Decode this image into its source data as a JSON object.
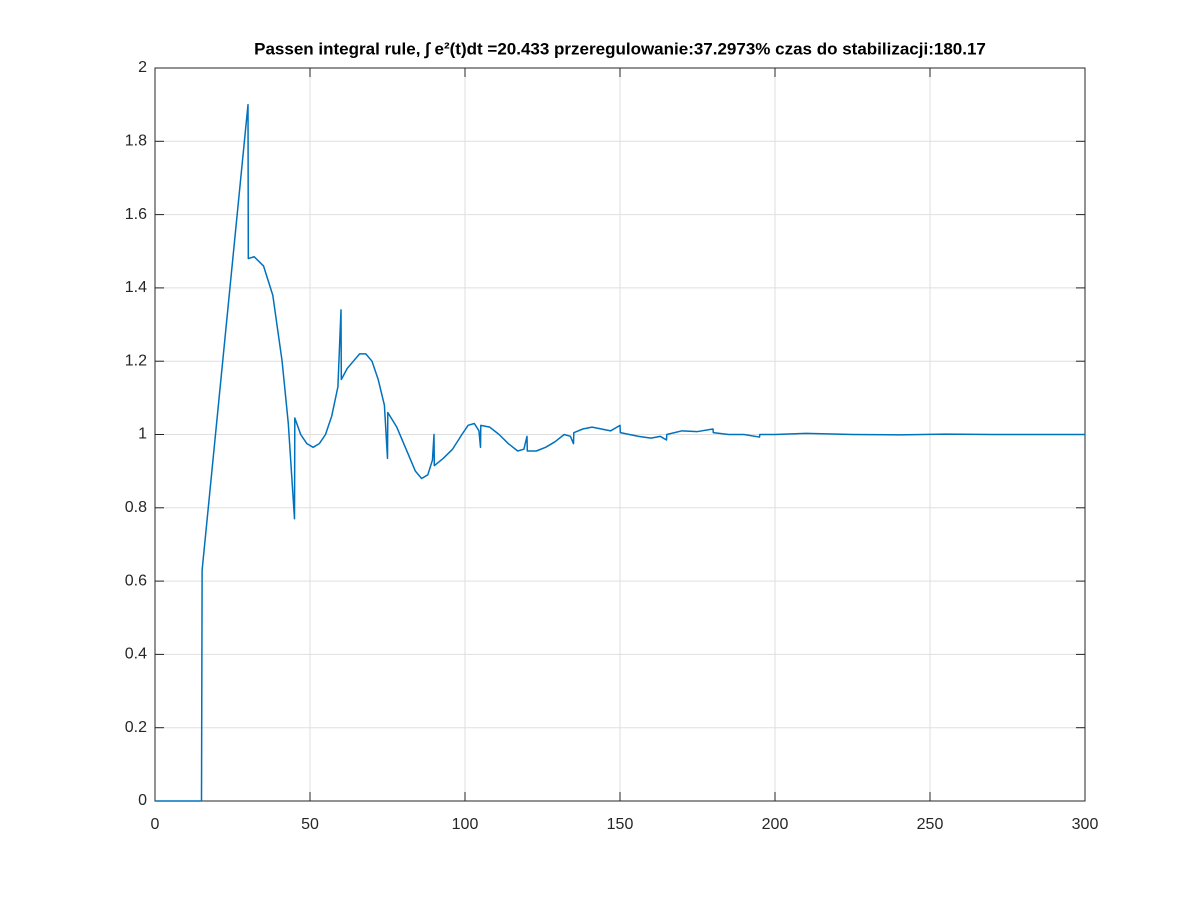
{
  "chart_data": {
    "type": "line",
    "title": "Passen integral rule, ∫ e²(t)dt =20.433 przeregulowanie:37.2973% czas do stabilizacji:180.17",
    "xlim": [
      0,
      300
    ],
    "xticks": [
      0,
      50,
      100,
      150,
      200,
      250,
      300
    ],
    "ylim": [
      0,
      2
    ],
    "yticks": [
      0,
      0.2,
      0.4,
      0.6,
      0.8,
      1,
      1.2,
      1.4,
      1.6,
      1.8,
      2
    ],
    "grid": true,
    "series": [
      {
        "color": "#0072bd",
        "x": [
          0,
          15,
          15.2,
          30,
          30.1,
          32,
          35,
          38,
          41,
          43,
          45,
          45.1,
          47,
          49,
          51,
          53,
          55,
          57,
          59,
          60,
          60.1,
          62,
          64,
          66,
          68,
          70,
          72,
          74,
          75,
          75.1,
          78,
          81,
          84,
          86,
          88,
          89.5,
          90,
          90.1,
          93,
          96,
          99,
          101,
          103,
          104.5,
          105,
          105.1,
          108,
          111,
          114,
          117,
          119,
          120,
          120.1,
          123,
          126,
          129,
          132,
          134,
          135,
          135.1,
          138,
          141,
          144,
          147,
          150,
          150.1,
          153,
          156,
          160,
          163,
          165,
          165.1,
          170,
          175,
          180,
          180.1,
          185,
          190,
          195,
          195.1,
          200,
          210,
          225,
          240,
          255,
          270,
          300
        ],
        "values": [
          0,
          0,
          0.63,
          1.9,
          1.48,
          1.485,
          1.46,
          1.38,
          1.2,
          1.03,
          0.77,
          1.045,
          1.0,
          0.975,
          0.965,
          0.975,
          1.0,
          1.05,
          1.13,
          1.34,
          1.15,
          1.18,
          1.2,
          1.22,
          1.22,
          1.2,
          1.15,
          1.08,
          0.935,
          1.06,
          1.02,
          0.96,
          0.9,
          0.88,
          0.89,
          0.93,
          1.0,
          0.915,
          0.935,
          0.96,
          1.0,
          1.025,
          1.03,
          1.01,
          0.965,
          1.025,
          1.02,
          1.0,
          0.975,
          0.955,
          0.96,
          0.995,
          0.955,
          0.955,
          0.965,
          0.98,
          1.0,
          0.995,
          0.975,
          1.005,
          1.015,
          1.02,
          1.015,
          1.01,
          1.025,
          1.005,
          1.0,
          0.995,
          0.99,
          0.995,
          0.985,
          1.0,
          1.01,
          1.008,
          1.015,
          1.005,
          1.0,
          1.0,
          0.993,
          1.0,
          1.0,
          1.003,
          1.0,
          0.999,
          1.001,
          1.0,
          1.0
        ]
      }
    ]
  }
}
